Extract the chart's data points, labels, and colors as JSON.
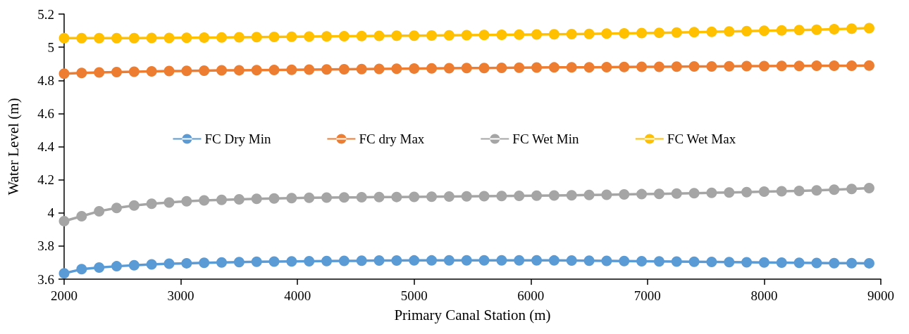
{
  "chart_data": {
    "type": "line",
    "xlabel": "Primary Canal Station (m)",
    "ylabel": "Water Level (m)",
    "x": [
      2000,
      2150,
      2300,
      2450,
      2600,
      2750,
      2900,
      3050,
      3200,
      3350,
      3500,
      3650,
      3800,
      3950,
      4100,
      4250,
      4400,
      4550,
      4700,
      4850,
      5000,
      5150,
      5300,
      5450,
      5600,
      5750,
      5900,
      6050,
      6200,
      6350,
      6500,
      6650,
      6800,
      6950,
      7100,
      7250,
      7400,
      7550,
      7700,
      7850,
      8000,
      8150,
      8300,
      8450,
      8600,
      8750,
      8900
    ],
    "xlim": [
      2000,
      9000
    ],
    "xticks": [
      2000,
      3000,
      4000,
      5000,
      6000,
      7000,
      8000,
      9000
    ],
    "ylim": [
      3.6,
      5.2
    ],
    "yticks": [
      3.6,
      3.8,
      4,
      4.2,
      4.4,
      4.6,
      4.8,
      5,
      5.2
    ],
    "grid": false,
    "legend": "center",
    "marker": "circle",
    "line_style": "solid",
    "series": [
      {
        "name": "FC Dry Min",
        "color": "#5b9bd5",
        "values": [
          3.635,
          3.66,
          3.67,
          3.678,
          3.684,
          3.689,
          3.693,
          3.696,
          3.699,
          3.701,
          3.703,
          3.705,
          3.706,
          3.707,
          3.708,
          3.709,
          3.71,
          3.711,
          3.712,
          3.712,
          3.713,
          3.713,
          3.714,
          3.714,
          3.714,
          3.714,
          3.714,
          3.714,
          3.713,
          3.712,
          3.711,
          3.71,
          3.709,
          3.708,
          3.707,
          3.706,
          3.705,
          3.704,
          3.703,
          3.702,
          3.701,
          3.7,
          3.699,
          3.698,
          3.697,
          3.697,
          3.696
        ]
      },
      {
        "name": "FC dry Max",
        "color": "#ed7d31",
        "values": [
          4.84,
          4.845,
          4.848,
          4.85,
          4.852,
          4.854,
          4.856,
          4.857,
          4.858,
          4.86,
          4.861,
          4.862,
          4.863,
          4.864,
          4.865,
          4.866,
          4.867,
          4.868,
          4.869,
          4.87,
          4.871,
          4.872,
          4.873,
          4.874,
          4.874,
          4.875,
          4.876,
          4.877,
          4.878,
          4.879,
          4.879,
          4.88,
          4.881,
          4.882,
          4.882,
          4.883,
          4.884,
          4.884,
          4.885,
          4.886,
          4.886,
          4.887,
          4.887,
          4.888,
          4.888,
          4.888,
          4.889
        ]
      },
      {
        "name": "FC Wet Min",
        "color": "#a5a5a5",
        "values": [
          3.95,
          3.98,
          4.01,
          4.03,
          4.045,
          4.055,
          4.063,
          4.07,
          4.075,
          4.079,
          4.082,
          4.085,
          4.087,
          4.089,
          4.091,
          4.092,
          4.093,
          4.094,
          4.095,
          4.096,
          4.097,
          4.098,
          4.099,
          4.1,
          4.101,
          4.102,
          4.103,
          4.104,
          4.105,
          4.106,
          4.108,
          4.109,
          4.111,
          4.113,
          4.115,
          4.117,
          4.119,
          4.121,
          4.123,
          4.125,
          4.128,
          4.13,
          4.133,
          4.136,
          4.14,
          4.144,
          4.15
        ]
      },
      {
        "name": "FC Wet Max",
        "color": "#ffc000",
        "values": [
          5.055,
          5.055,
          5.055,
          5.055,
          5.055,
          5.056,
          5.056,
          5.057,
          5.058,
          5.059,
          5.06,
          5.061,
          5.062,
          5.063,
          5.064,
          5.065,
          5.066,
          5.067,
          5.068,
          5.069,
          5.07,
          5.071,
          5.072,
          5.073,
          5.074,
          5.075,
          5.076,
          5.077,
          5.078,
          5.079,
          5.08,
          5.082,
          5.083,
          5.085,
          5.087,
          5.089,
          5.091,
          5.093,
          5.095,
          5.097,
          5.099,
          5.101,
          5.103,
          5.106,
          5.109,
          5.112,
          5.115
        ]
      }
    ]
  }
}
